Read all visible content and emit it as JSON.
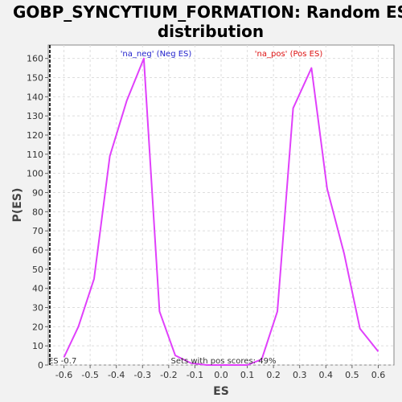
{
  "chart_data": {
    "type": "line",
    "title": "GOBP_SYNCYTIUM_FORMATION: Random ES distribution",
    "xlabel": "ES",
    "ylabel": "P(ES)",
    "xlim": [
      -0.66,
      0.66
    ],
    "ylim": [
      0,
      167
    ],
    "x_ticks": [
      -0.6,
      -0.5,
      -0.4,
      -0.3,
      -0.2,
      -0.1,
      0.0,
      0.1,
      0.2,
      0.3,
      0.4,
      0.5,
      0.6
    ],
    "x_tick_labels": [
      "-0.6",
      "-0.5",
      "-0.4",
      "-0.3",
      "-0.2",
      "-0.1",
      "0.0",
      "0.1",
      "0.2",
      "0.3",
      "0.4",
      "0.5",
      "0.6"
    ],
    "y_ticks": [
      0,
      10,
      20,
      30,
      40,
      50,
      60,
      70,
      80,
      90,
      100,
      110,
      120,
      130,
      140,
      150,
      160
    ],
    "y_tick_labels": [
      "0",
      "10",
      "20",
      "30",
      "40",
      "50",
      "60",
      "70",
      "80",
      "90",
      "100",
      "110",
      "120",
      "130",
      "140",
      "150",
      "160"
    ],
    "grid": true,
    "line_color": "#e040fb",
    "series": [
      {
        "x": [
          -0.6,
          -0.545,
          -0.485,
          -0.425,
          -0.36,
          -0.295,
          -0.235,
          -0.175,
          -0.115,
          -0.055,
          0.0,
          0.05,
          0.1,
          0.155,
          0.215,
          0.275,
          0.345,
          0.405,
          0.47,
          0.53,
          0.6
        ],
        "y": [
          4,
          20,
          45,
          109,
          138,
          160,
          28,
          5,
          1,
          0,
          0,
          0,
          0,
          3,
          28,
          134,
          155,
          92,
          58,
          19,
          7
        ]
      }
    ],
    "annotations": [
      {
        "text": "'na_neg' (Neg ES)",
        "color": "#2222cc"
      },
      {
        "text": "'na_pos' (Pos ES)",
        "color": "#dd1111"
      }
    ],
    "reference_line": {
      "x": -0.654,
      "label": "ES -0.7"
    },
    "note": "Sets with pos scores: 49%"
  }
}
